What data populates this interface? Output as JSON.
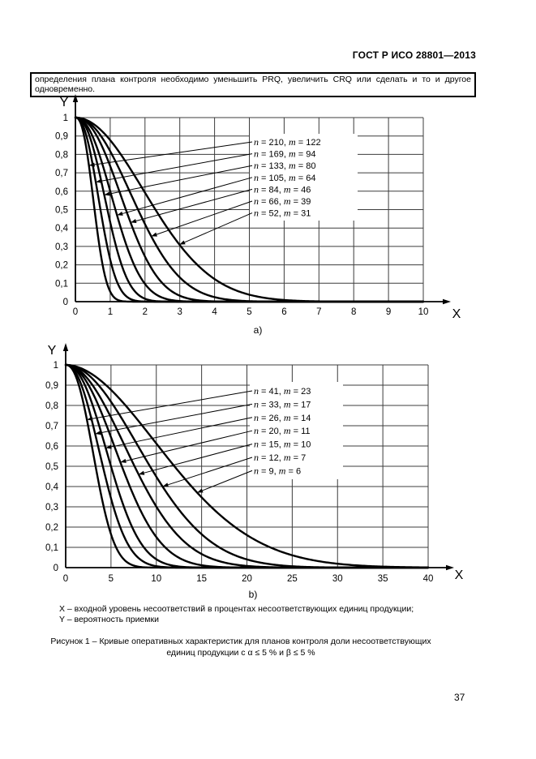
{
  "page": {
    "header": "ГОСТ Р ИСО 28801—2013",
    "intro_text": "определения плана контроля необходимо уменьшить PRQ, увеличить CRQ или сделать и то и другое одновременно.",
    "note_line1": "X – входной уровень несоответствий в процентах несоответствующих единиц продукции;",
    "note_line2": "Y – вероятность приемки",
    "caption": "Рисунок 1 – Кривые оперативных характеристик для планов контроля доли несоответствующих единиц продукции с α ≤ 5 % и β ≤ 5 %",
    "page_number": "37"
  },
  "colors": {
    "ink": "#000000",
    "grid": "#3c3c3c",
    "background": "#ffffff"
  },
  "chart_data": [
    {
      "id": "a",
      "type": "line",
      "sublabel": "a)",
      "x_axis_label": "X",
      "y_axis_label": "Y",
      "xlim": [
        0,
        10
      ],
      "ylim": [
        0,
        1
      ],
      "grid": "on",
      "x_ticks": [
        {
          "v": 0,
          "label": "0"
        },
        {
          "v": 1,
          "label": "1"
        },
        {
          "v": 2,
          "label": "2"
        },
        {
          "v": 3,
          "label": "3"
        },
        {
          "v": 4,
          "label": "4"
        },
        {
          "v": 5,
          "label": "5"
        },
        {
          "v": 6,
          "label": "6"
        },
        {
          "v": 7,
          "label": "7"
        },
        {
          "v": 8,
          "label": "8"
        },
        {
          "v": 9,
          "label": "9"
        },
        {
          "v": 10,
          "label": "10"
        }
      ],
      "y_ticks": [
        {
          "v": 0,
          "label": "0"
        },
        {
          "v": 0.1,
          "label": "0,1"
        },
        {
          "v": 0.2,
          "label": "0,2"
        },
        {
          "v": 0.3,
          "label": "0,3"
        },
        {
          "v": 0.4,
          "label": "0,4"
        },
        {
          "v": 0.5,
          "label": "0,5"
        },
        {
          "v": 0.6,
          "label": "0,6"
        },
        {
          "v": 0.7,
          "label": "0,7"
        },
        {
          "v": 0.8,
          "label": "0,8"
        },
        {
          "v": 0.9,
          "label": "0,9"
        },
        {
          "v": 1,
          "label": "1"
        }
      ],
      "curve_model": "y = exp(-ln2*(x/x50)^k), x50 = X value at Y = 0.5",
      "curves": [
        {
          "label": "n = 210, m = 122",
          "n": 210,
          "m": 122,
          "x50": 0.55,
          "k": 2.4,
          "arrow_y": 0.74
        },
        {
          "label": "n = 169, m = 94",
          "n": 169,
          "m": 94,
          "x50": 0.72,
          "k": 2.3,
          "arrow_y": 0.65
        },
        {
          "label": "n = 133, m = 80",
          "n": 133,
          "m": 80,
          "x50": 0.92,
          "k": 2.3,
          "arrow_y": 0.58
        },
        {
          "label": "n = 105, m = 64",
          "n": 105,
          "m": 64,
          "x50": 1.15,
          "k": 2.2,
          "arrow_y": 0.47
        },
        {
          "label": "n = 84, m = 46",
          "n": 84,
          "m": 46,
          "x50": 1.45,
          "k": 2.2,
          "arrow_y": 0.43
        },
        {
          "label": "n = 66, m = 39",
          "n": 66,
          "m": 39,
          "x50": 1.8,
          "k": 2.1,
          "arrow_y": 0.355
        },
        {
          "label": "n = 52, m = 31",
          "n": 52,
          "m": 31,
          "x50": 2.3,
          "k": 2.0,
          "arrow_y": 0.31
        }
      ]
    },
    {
      "id": "b",
      "type": "line",
      "sublabel": "b)",
      "x_axis_label": "X",
      "y_axis_label": "Y",
      "xlim": [
        0,
        40
      ],
      "ylim": [
        0,
        1
      ],
      "grid": "on",
      "x_ticks": [
        {
          "v": 0,
          "label": "0"
        },
        {
          "v": 5,
          "label": "5"
        },
        {
          "v": 10,
          "label": "10"
        },
        {
          "v": 15,
          "label": "15"
        },
        {
          "v": 20,
          "label": "20"
        },
        {
          "v": 25,
          "label": "25"
        },
        {
          "v": 30,
          "label": "30"
        },
        {
          "v": 35,
          "label": "35"
        },
        {
          "v": 40,
          "label": "40"
        }
      ],
      "y_ticks": [
        {
          "v": 0,
          "label": "0"
        },
        {
          "v": 0.1,
          "label": "0,1"
        },
        {
          "v": 0.2,
          "label": "0,2"
        },
        {
          "v": 0.3,
          "label": "0,3"
        },
        {
          "v": 0.4,
          "label": "0,4"
        },
        {
          "v": 0.5,
          "label": "0,5"
        },
        {
          "v": 0.6,
          "label": "0,6"
        },
        {
          "v": 0.7,
          "label": "0,7"
        },
        {
          "v": 0.8,
          "label": "0,8"
        },
        {
          "v": 0.9,
          "label": "0,9"
        },
        {
          "v": 1,
          "label": "1"
        }
      ],
      "curve_model": "y = exp(-ln2*(x/x50)^k), x50 = X value at Y = 0.5",
      "curves": [
        {
          "label": "n = 41, m = 23",
          "n": 41,
          "m": 23,
          "x50": 3.3,
          "k": 2.3,
          "arrow_y": 0.73
        },
        {
          "label": "n = 33, m = 17",
          "n": 33,
          "m": 17,
          "x50": 4.1,
          "k": 2.2,
          "arrow_y": 0.66
        },
        {
          "label": "n = 26, m = 14",
          "n": 26,
          "m": 14,
          "x50": 5.0,
          "k": 2.2,
          "arrow_y": 0.59
        },
        {
          "label": "n = 20, m = 11",
          "n": 20,
          "m": 11,
          "x50": 6.2,
          "k": 2.1,
          "arrow_y": 0.52
        },
        {
          "label": "n = 15, m = 10",
          "n": 15,
          "m": 10,
          "x50": 7.6,
          "k": 2.0,
          "arrow_y": 0.46
        },
        {
          "label": "n = 12, m = 7",
          "n": 12,
          "m": 7,
          "x50": 9.3,
          "k": 2.0,
          "arrow_y": 0.4
        },
        {
          "label": "n = 9, m = 6",
          "n": 9,
          "m": 6,
          "x50": 12.0,
          "k": 1.9,
          "arrow_y": 0.37
        }
      ]
    }
  ]
}
